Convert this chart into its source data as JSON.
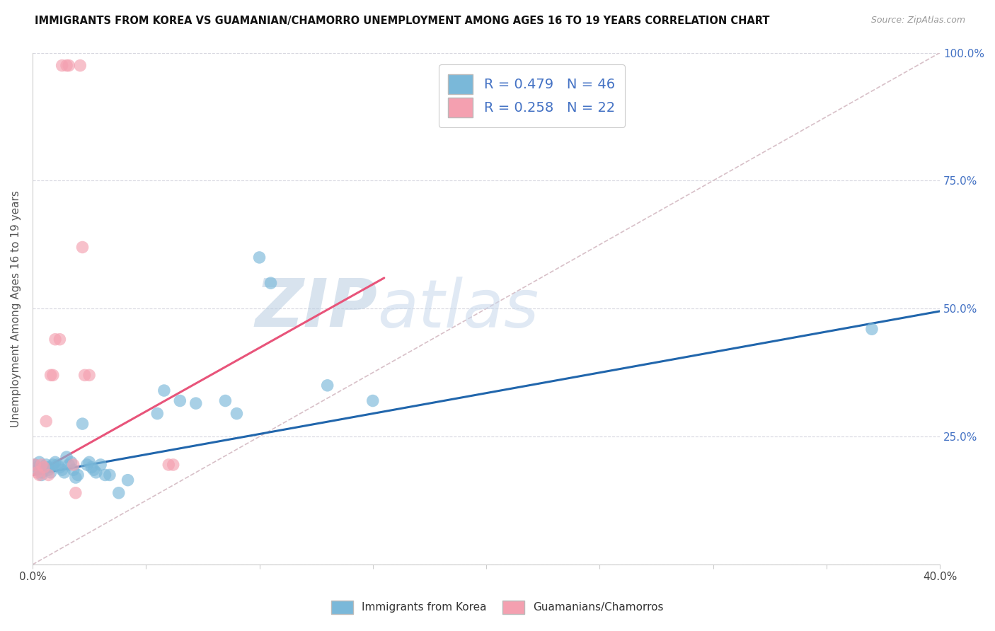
{
  "title": "IMMIGRANTS FROM KOREA VS GUAMANIAN/CHAMORRO UNEMPLOYMENT AMONG AGES 16 TO 19 YEARS CORRELATION CHART",
  "source": "Source: ZipAtlas.com",
  "ylabel": "Unemployment Among Ages 16 to 19 years",
  "xlim": [
    0.0,
    0.4
  ],
  "ylim": [
    0.0,
    1.0
  ],
  "xticks": [
    0.0,
    0.05,
    0.1,
    0.15,
    0.2,
    0.25,
    0.3,
    0.35,
    0.4
  ],
  "yticks": [
    0.0,
    0.25,
    0.5,
    0.75,
    1.0
  ],
  "yticklabels_right": [
    "",
    "25.0%",
    "50.0%",
    "75.0%",
    "100.0%"
  ],
  "blue_R": 0.479,
  "blue_N": 46,
  "pink_R": 0.258,
  "pink_N": 22,
  "blue_color": "#7ab8d9",
  "pink_color": "#f4a0b0",
  "blue_line_color": "#2166ac",
  "pink_line_color": "#e8547a",
  "ref_line_color": "#d8c0c8",
  "watermark_zip": "ZIP",
  "watermark_atlas": "atlas",
  "watermark_color": "#ccdcec",
  "blue_dots": [
    [
      0.001,
      0.195
    ],
    [
      0.002,
      0.185
    ],
    [
      0.002,
      0.19
    ],
    [
      0.003,
      0.2
    ],
    [
      0.004,
      0.175
    ],
    [
      0.004,
      0.18
    ],
    [
      0.005,
      0.185
    ],
    [
      0.005,
      0.19
    ],
    [
      0.006,
      0.195
    ],
    [
      0.007,
      0.185
    ],
    [
      0.007,
      0.19
    ],
    [
      0.008,
      0.18
    ],
    [
      0.009,
      0.195
    ],
    [
      0.01,
      0.2
    ],
    [
      0.011,
      0.195
    ],
    [
      0.012,
      0.19
    ],
    [
      0.013,
      0.185
    ],
    [
      0.014,
      0.18
    ],
    [
      0.015,
      0.21
    ],
    [
      0.016,
      0.195
    ],
    [
      0.017,
      0.2
    ],
    [
      0.018,
      0.185
    ],
    [
      0.019,
      0.17
    ],
    [
      0.02,
      0.175
    ],
    [
      0.022,
      0.275
    ],
    [
      0.024,
      0.195
    ],
    [
      0.025,
      0.2
    ],
    [
      0.026,
      0.19
    ],
    [
      0.027,
      0.185
    ],
    [
      0.028,
      0.18
    ],
    [
      0.03,
      0.195
    ],
    [
      0.032,
      0.175
    ],
    [
      0.034,
      0.175
    ],
    [
      0.038,
      0.14
    ],
    [
      0.042,
      0.165
    ],
    [
      0.055,
      0.295
    ],
    [
      0.058,
      0.34
    ],
    [
      0.065,
      0.32
    ],
    [
      0.072,
      0.315
    ],
    [
      0.085,
      0.32
    ],
    [
      0.09,
      0.295
    ],
    [
      0.1,
      0.6
    ],
    [
      0.105,
      0.55
    ],
    [
      0.13,
      0.35
    ],
    [
      0.15,
      0.32
    ],
    [
      0.37,
      0.46
    ]
  ],
  "pink_dots": [
    [
      0.001,
      0.195
    ],
    [
      0.002,
      0.18
    ],
    [
      0.003,
      0.175
    ],
    [
      0.004,
      0.195
    ],
    [
      0.005,
      0.19
    ],
    [
      0.006,
      0.28
    ],
    [
      0.007,
      0.175
    ],
    [
      0.008,
      0.37
    ],
    [
      0.009,
      0.37
    ],
    [
      0.01,
      0.44
    ],
    [
      0.012,
      0.44
    ],
    [
      0.013,
      0.975
    ],
    [
      0.015,
      0.975
    ],
    [
      0.016,
      0.975
    ],
    [
      0.021,
      0.975
    ],
    [
      0.022,
      0.62
    ],
    [
      0.023,
      0.37
    ],
    [
      0.025,
      0.37
    ],
    [
      0.018,
      0.195
    ],
    [
      0.06,
      0.195
    ],
    [
      0.062,
      0.195
    ],
    [
      0.019,
      0.14
    ]
  ],
  "blue_line": [
    [
      0.0,
      0.175
    ],
    [
      0.4,
      0.495
    ]
  ],
  "pink_line": [
    [
      0.0,
      0.175
    ],
    [
      0.155,
      0.56
    ]
  ],
  "ref_line": [
    [
      0.0,
      0.0
    ],
    [
      0.4,
      1.0
    ]
  ]
}
